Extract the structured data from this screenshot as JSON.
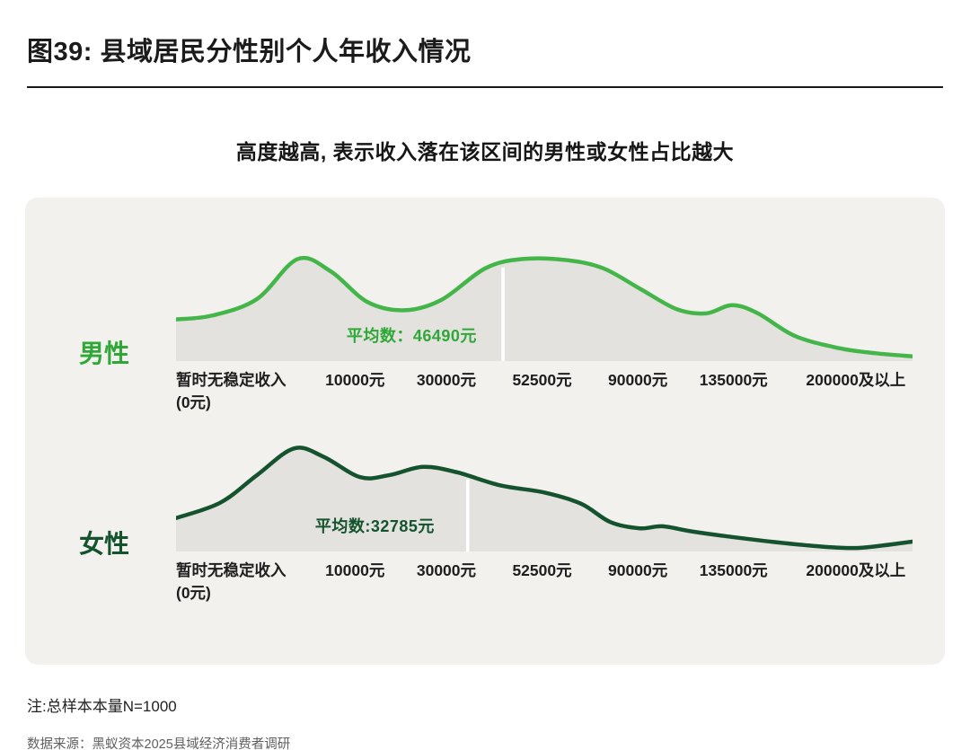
{
  "page": {
    "title": "图39: 县域居民分性别个人年收入情况",
    "subtitle": "高度越高, 表示收入落在该区间的男性或女性占比越大",
    "note": "注:总样本本量N=1000",
    "source": "数据来源：黑蚁资本2025县域经济消费者调研"
  },
  "colors": {
    "panel_background": "#f2f1ee",
    "area_fill": "#e3e2df",
    "male_green": "#44b649",
    "female_green": "#14532d",
    "mean_divider": "#ffffff",
    "text_dark": "#1b1b1b"
  },
  "axis": {
    "labels": [
      {
        "text": "暂时无稳定收入",
        "sub": "(0元)",
        "x": 0,
        "align": "left"
      },
      {
        "text": "10000元",
        "x": 0.243
      },
      {
        "text": "30000元",
        "x": 0.367
      },
      {
        "text": "52500元",
        "x": 0.497
      },
      {
        "text": "90000元",
        "x": 0.627
      },
      {
        "text": "135000元",
        "x": 0.757
      },
      {
        "text": "200000及以上",
        "x": 0.923
      }
    ]
  },
  "chart_data": [
    {
      "type": "area",
      "series_name": "男性",
      "color": "#44b649",
      "label_color": "#2fa838",
      "mean_label": "平均数：46490元",
      "mean_value": 46490,
      "mean_x": 0.444,
      "annotation_x": 0.32,
      "categories": [
        "暂时无稳定收入(0元)",
        "10000元",
        "30000元",
        "52500元",
        "90000元",
        "135000元",
        "200000及以上"
      ],
      "points": [
        [
          0,
          0.38
        ],
        [
          0.05,
          0.42
        ],
        [
          0.11,
          0.58
        ],
        [
          0.165,
          0.97
        ],
        [
          0.21,
          0.85
        ],
        [
          0.26,
          0.55
        ],
        [
          0.31,
          0.47
        ],
        [
          0.36,
          0.57
        ],
        [
          0.42,
          0.88
        ],
        [
          0.47,
          0.97
        ],
        [
          0.53,
          0.96
        ],
        [
          0.58,
          0.88
        ],
        [
          0.63,
          0.68
        ],
        [
          0.68,
          0.48
        ],
        [
          0.72,
          0.44
        ],
        [
          0.755,
          0.52
        ],
        [
          0.79,
          0.44
        ],
        [
          0.84,
          0.22
        ],
        [
          0.9,
          0.1
        ],
        [
          0.95,
          0.05
        ],
        [
          1,
          0.02
        ]
      ]
    },
    {
      "type": "area",
      "series_name": "女性",
      "color": "#14532d",
      "label_color": "#14532d",
      "mean_label": "平均数:32785元",
      "mean_value": 32785,
      "mean_x": 0.396,
      "annotation_x": 0.27,
      "categories": [
        "暂时无稳定收入(0元)",
        "10000元",
        "30000元",
        "52500元",
        "90000元",
        "135000元",
        "200000及以上"
      ],
      "points": [
        [
          0,
          0.3
        ],
        [
          0.06,
          0.45
        ],
        [
          0.11,
          0.72
        ],
        [
          0.16,
          0.98
        ],
        [
          0.2,
          0.9
        ],
        [
          0.25,
          0.7
        ],
        [
          0.29,
          0.72
        ],
        [
          0.335,
          0.8
        ],
        [
          0.38,
          0.75
        ],
        [
          0.44,
          0.62
        ],
        [
          0.5,
          0.55
        ],
        [
          0.55,
          0.44
        ],
        [
          0.59,
          0.26
        ],
        [
          0.63,
          0.2
        ],
        [
          0.66,
          0.22
        ],
        [
          0.7,
          0.17
        ],
        [
          0.75,
          0.12
        ],
        [
          0.82,
          0.06
        ],
        [
          0.88,
          0.02
        ],
        [
          0.93,
          0.01
        ],
        [
          1,
          0.07
        ]
      ]
    }
  ]
}
